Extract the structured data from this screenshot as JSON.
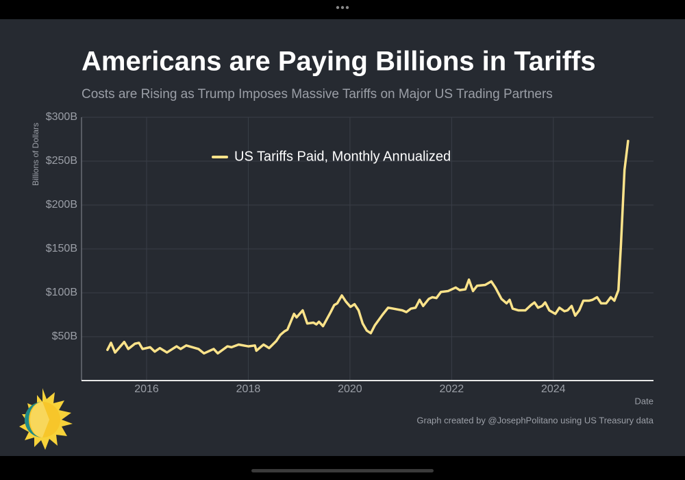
{
  "chart_data": {
    "type": "line",
    "title": "Americans are Paying Billions in Tariffs",
    "subtitle": "Costs are Rising as Trump Imposes Massive Tariffs on Major US Trading Partners",
    "y_label": "Billions of Dollars",
    "x_label": "Date",
    "source": "Graph created by @JosephPolitano using US Treasury data",
    "x": [
      2015.23,
      2015.3,
      2015.38,
      2015.56,
      2015.64,
      2015.77,
      2015.85,
      2015.92,
      2016.07,
      2016.16,
      2016.26,
      2016.4,
      2016.59,
      2016.67,
      2016.78,
      2017.02,
      2017.13,
      2017.32,
      2017.4,
      2017.59,
      2017.67,
      2017.81,
      2018.0,
      2018.13,
      2018.16,
      2018.3,
      2018.41,
      2018.55,
      2018.63,
      2018.71,
      2018.77,
      2018.9,
      2018.95,
      2019.07,
      2019.16,
      2019.28,
      2019.34,
      2019.39,
      2019.47,
      2019.62,
      2019.69,
      2019.75,
      2019.84,
      2019.92,
      2020.01,
      2020.09,
      2020.17,
      2020.25,
      2020.33,
      2020.41,
      2020.49,
      2020.64,
      2020.75,
      2020.85,
      2021.03,
      2021.11,
      2021.2,
      2021.29,
      2021.37,
      2021.44,
      2021.55,
      2021.62,
      2021.7,
      2021.79,
      2021.93,
      2022.08,
      2022.16,
      2022.27,
      2022.34,
      2022.42,
      2022.5,
      2022.66,
      2022.78,
      2022.86,
      2022.98,
      2023.08,
      2023.14,
      2023.2,
      2023.31,
      2023.45,
      2023.56,
      2023.63,
      2023.7,
      2023.78,
      2023.84,
      2023.92,
      2024.04,
      2024.12,
      2024.22,
      2024.28,
      2024.36,
      2024.43,
      2024.51,
      2024.59,
      2024.7,
      2024.77,
      2024.86,
      2024.94,
      2025.04,
      2025.13,
      2025.2,
      2025.28,
      2025.33,
      2025.4,
      2025.47
    ],
    "series": [
      {
        "name": "US Tariffs Paid, Monthly Annualized",
        "color": "#fce38a",
        "values": [
          35,
          43,
          32,
          44,
          36,
          42,
          43,
          36,
          38,
          33,
          37,
          32,
          39,
          36,
          40,
          36,
          31,
          36,
          31,
          39,
          38,
          41,
          39,
          40,
          34,
          41,
          37,
          45,
          52,
          56,
          58,
          76,
          72,
          80,
          65,
          66,
          64,
          67,
          62,
          78,
          86,
          88,
          97,
          90,
          84,
          87,
          80,
          65,
          57,
          54,
          63,
          75,
          83,
          82,
          80,
          78,
          82,
          83,
          92,
          85,
          93,
          95,
          94,
          101,
          102,
          106,
          103,
          104,
          115,
          102,
          108,
          109,
          113,
          106,
          93,
          88,
          92,
          82,
          80,
          80,
          86,
          89,
          83,
          85,
          89,
          80,
          76,
          83,
          79,
          80,
          85,
          74,
          80,
          91,
          91,
          92,
          95,
          88,
          88,
          95,
          91,
          103,
          155,
          240,
          273
        ]
      }
    ],
    "xlim": [
      2014.72,
      2025.97
    ],
    "xticks": [
      2016,
      2018,
      2020,
      2022,
      2024
    ],
    "ylim": [
      0,
      300
    ],
    "yticks": [
      {
        "value": 50,
        "label": "$50B"
      },
      {
        "value": 100,
        "label": "$100B"
      },
      {
        "value": 150,
        "label": "$150B"
      },
      {
        "value": 200,
        "label": "$200B"
      },
      {
        "value": 250,
        "label": "$250B"
      },
      {
        "value": 300,
        "label": "$300B"
      }
    ],
    "grid": true,
    "legend": "top"
  }
}
